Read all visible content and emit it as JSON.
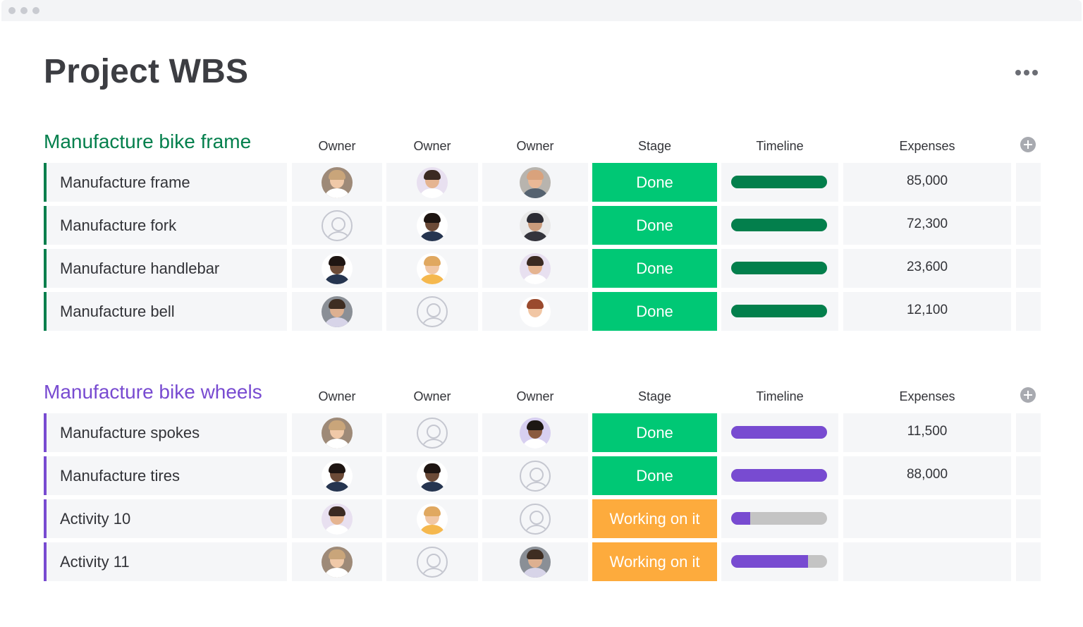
{
  "window": {
    "controls": [
      "close-dot",
      "minimize-dot",
      "maximize-dot"
    ]
  },
  "page": {
    "title": "Project WBS"
  },
  "columns": {
    "owner1": "Owner",
    "owner2": "Owner",
    "owner3": "Owner",
    "stage": "Stage",
    "timeline": "Timeline",
    "expenses": "Expenses"
  },
  "status_colors": {
    "Done": "#00c875",
    "Working on it": "#fdab3d"
  },
  "groups": [
    {
      "title": "Manufacture bike frame",
      "color": "#037f4c",
      "rows": [
        {
          "name": "Manufacture frame",
          "owners": [
            "person-light-hair",
            "person-dark-hair",
            "person-bald"
          ],
          "stage": "Done",
          "timeline_progress": 1.0,
          "expenses": "85,000"
        },
        {
          "name": "Manufacture fork",
          "owners": [
            "unassigned",
            "person-dark-skin",
            "person-turban"
          ],
          "stage": "Done",
          "timeline_progress": 1.0,
          "expenses": "72,300"
        },
        {
          "name": "Manufacture handlebar",
          "owners": [
            "person-dark-skin",
            "person-blonde",
            "person-dark-hair"
          ],
          "stage": "Done",
          "timeline_progress": 1.0,
          "expenses": "23,600"
        },
        {
          "name": "Manufacture bell",
          "owners": [
            "person-beard",
            "unassigned",
            "person-red-hair"
          ],
          "stage": "Done",
          "timeline_progress": 1.0,
          "expenses": "12,100"
        }
      ]
    },
    {
      "title": "Manufacture bike wheels",
      "color": "#784bd1",
      "rows": [
        {
          "name": "Manufacture spokes",
          "owners": [
            "person-light-hair",
            "unassigned",
            "person-curly-hair"
          ],
          "stage": "Done",
          "timeline_progress": 1.0,
          "expenses": "11,500"
        },
        {
          "name": "Manufacture tires",
          "owners": [
            "person-dark-skin",
            "person-dark-skin",
            "unassigned"
          ],
          "stage": "Done",
          "timeline_progress": 1.0,
          "expenses": "88,000"
        },
        {
          "name": "Activity 10",
          "owners": [
            "person-dark-hair",
            "person-blonde",
            "unassigned"
          ],
          "stage": "Working on it",
          "timeline_progress": 0.2,
          "expenses": ""
        },
        {
          "name": "Activity 11",
          "owners": [
            "person-light-hair",
            "unassigned",
            "person-beard"
          ],
          "stage": "Working on it",
          "timeline_progress": 0.8,
          "expenses": ""
        }
      ]
    }
  ]
}
